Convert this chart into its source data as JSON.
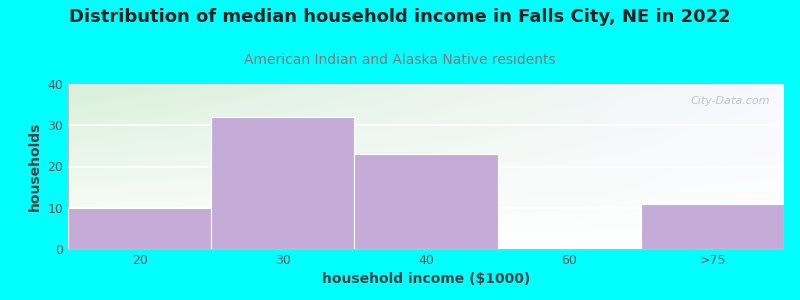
{
  "title": "Distribution of median household income in Falls City, NE in 2022",
  "subtitle": "American Indian and Alaska Native residents",
  "xlabel": "household income ($1000)",
  "ylabel": "households",
  "background_color": "#00FFFF",
  "plot_bg_gradient_left": "#d8f0d8",
  "plot_bg_gradient_right": "#f8f8ff",
  "bar_color": "#c5acd8",
  "bar_edge_color": "#c5acd8",
  "categories": [
    "20",
    "30",
    "40",
    "60",
    ">75"
  ],
  "values": [
    10,
    32,
    23,
    0,
    11
  ],
  "ylim": [
    0,
    40
  ],
  "yticks": [
    0,
    10,
    20,
    30,
    40
  ],
  "watermark": "City-Data.com",
  "title_fontsize": 13,
  "subtitle_fontsize": 10,
  "axis_label_fontsize": 10,
  "tick_fontsize": 9,
  "title_color": "#222222",
  "subtitle_color": "#7a7a7a",
  "tick_color": "#555555",
  "axis_label_color": "#444444"
}
